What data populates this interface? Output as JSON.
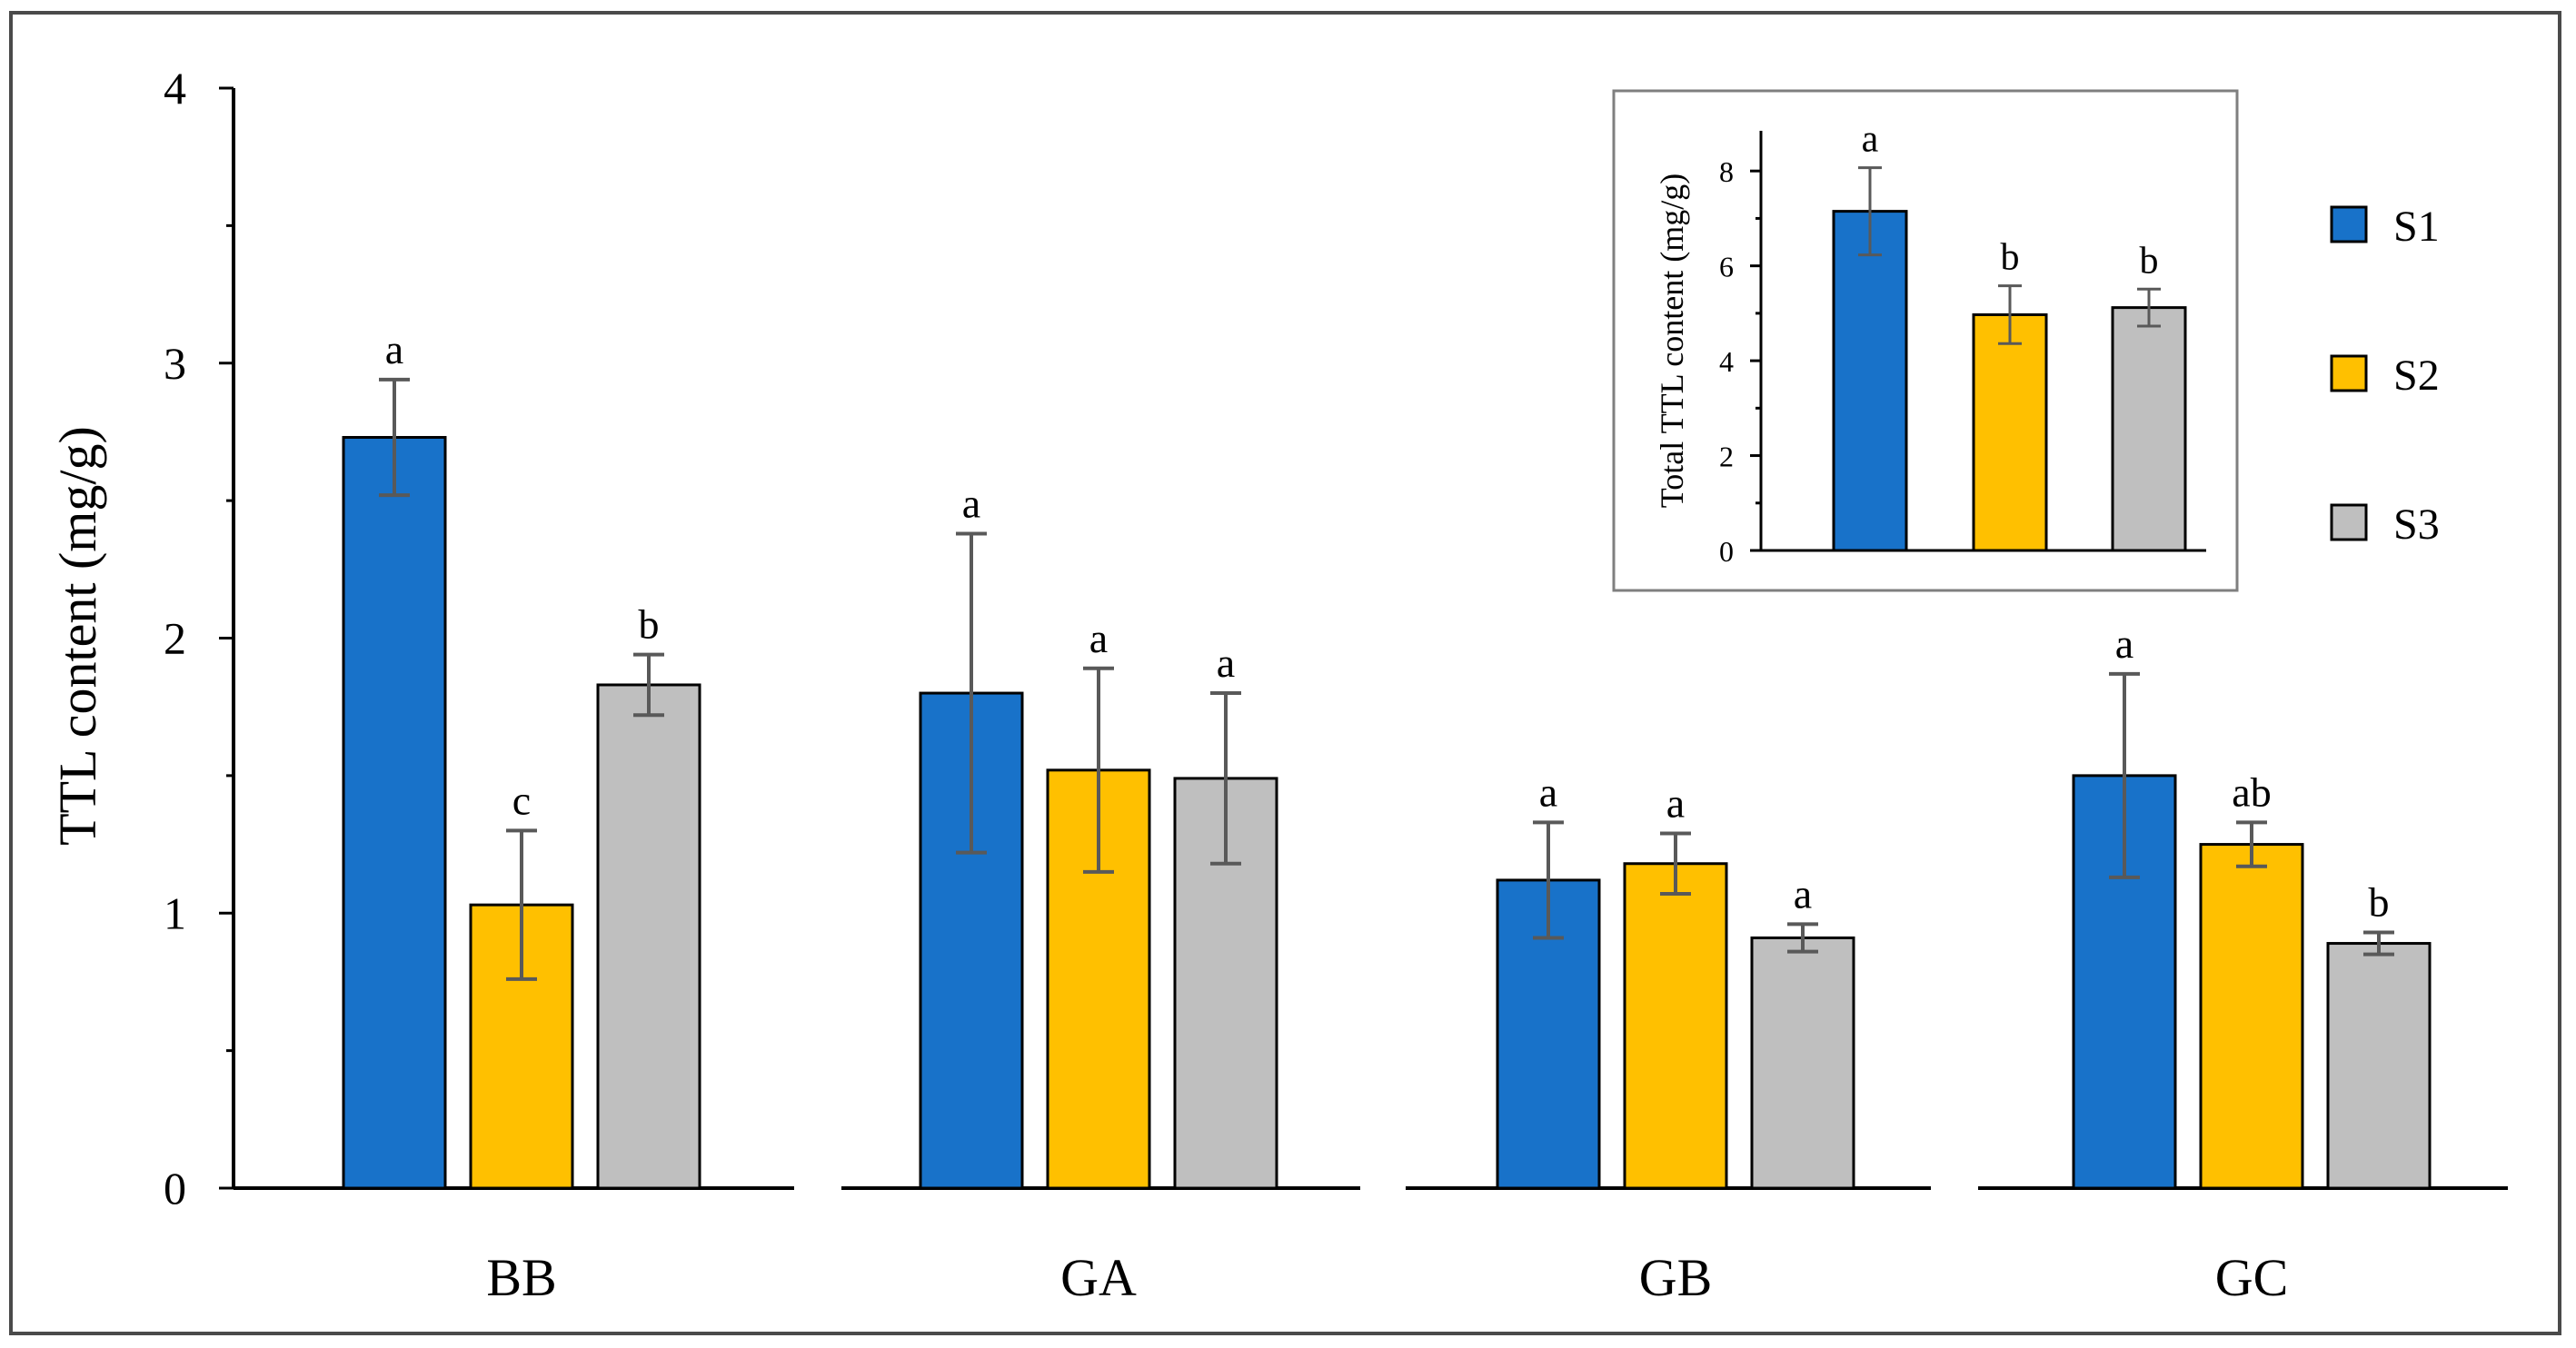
{
  "colors": {
    "S1": "#1872c9",
    "S2": "#ffc000",
    "S3": "#bfbfbf",
    "error_bar": "#595959",
    "axis": "#000000",
    "frame": "#4a4a4a"
  },
  "chart_data": [
    {
      "type": "bar",
      "title": "",
      "xlabel": "",
      "ylabel": "TTL content (mg/g)",
      "ylim": [
        0,
        4
      ],
      "yticks": [
        "0",
        "1",
        "2",
        "3",
        "4"
      ],
      "categories": [
        "BB",
        "GA",
        "GB",
        "GC"
      ],
      "series": [
        {
          "name": "S1",
          "values": [
            2.73,
            1.8,
            1.12,
            1.5
          ],
          "errors": [
            0.21,
            0.58,
            0.21,
            0.37
          ],
          "letters": [
            "a",
            "a",
            "a",
            "a"
          ]
        },
        {
          "name": "S2",
          "values": [
            1.03,
            1.52,
            1.18,
            1.25
          ],
          "errors": [
            0.27,
            0.37,
            0.11,
            0.08
          ],
          "letters": [
            "c",
            "a",
            "a",
            "ab"
          ]
        },
        {
          "name": "S3",
          "values": [
            1.83,
            1.49,
            0.91,
            0.89
          ],
          "errors": [
            0.11,
            0.31,
            0.05,
            0.04
          ],
          "letters": [
            "b",
            "a",
            "a",
            "b"
          ]
        }
      ],
      "legend": {
        "position": "right",
        "entries": [
          "S1",
          "S2",
          "S3"
        ]
      }
    },
    {
      "type": "bar",
      "title": "",
      "xlabel": "",
      "ylabel": "Total TTL content (mg/g)",
      "ylim": [
        0,
        9
      ],
      "yticks": [
        "0",
        "2",
        "4",
        "6",
        "8"
      ],
      "categories": [
        "S1",
        "S2",
        "S3"
      ],
      "values": [
        7.15,
        4.97,
        5.12
      ],
      "errors": [
        0.92,
        0.61,
        0.39
      ],
      "letters": [
        "a",
        "b",
        "b"
      ]
    }
  ]
}
